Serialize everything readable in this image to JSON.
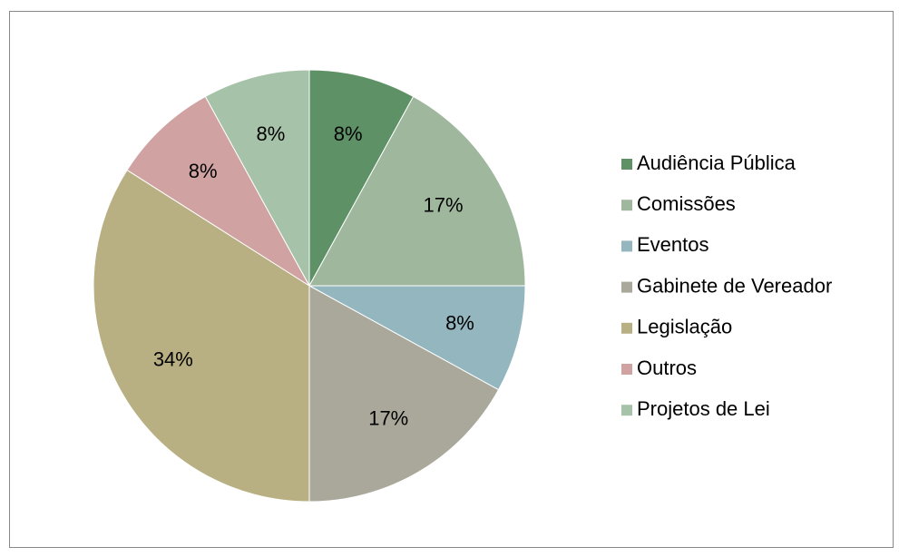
{
  "chart_data": {
    "type": "pie",
    "categories": [
      "Audiência Pública",
      "Comissões",
      "Eventos",
      "Gabinete de Vereador",
      "Legislação",
      "Outros",
      "Projetos de Lei"
    ],
    "values": [
      8,
      17,
      8,
      17,
      34,
      8,
      8
    ],
    "value_labels": [
      "8%",
      "17%",
      "8%",
      "17%",
      "34%",
      "8%",
      "8%"
    ],
    "colors": [
      "#5f9167",
      "#9fb89d",
      "#93b6bf",
      "#a9a89b",
      "#b8b083",
      "#d0a2a2",
      "#a6c2a8"
    ],
    "legend": "right"
  }
}
